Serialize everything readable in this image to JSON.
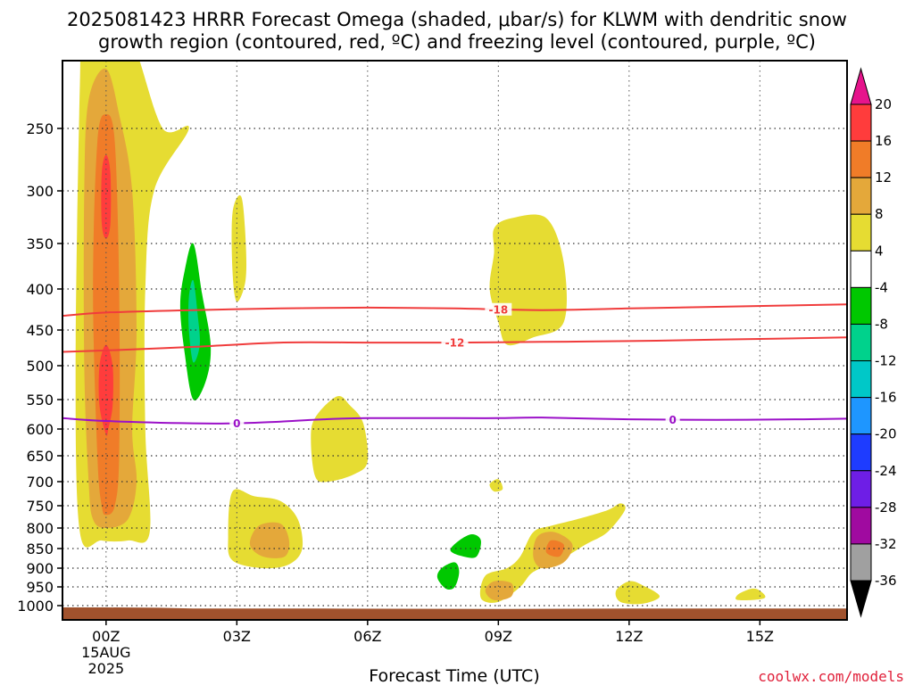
{
  "title": {
    "line1": "2025081423 HRRR Forecast Omega (shaded, μbar/s) for KLWM with dendritic snow",
    "line2": "growth region (contoured, red, ºC) and freezing level (contoured, purple, ºC)"
  },
  "credit": "coolwx.com/models",
  "chart_data": {
    "type": "time-height cross section",
    "xlabel": "Forecast Time (UTC)",
    "ylabel": "",
    "x_unit": "hours after 2025-08-15 00Z",
    "xlim": [
      -1.0,
      17.0
    ],
    "y_unit": "hPa",
    "ylim": [
      1020,
      200
    ],
    "x_ticks": [
      {
        "hour": 0,
        "label": "00Z",
        "sub1": "15AUG",
        "sub2": "2025"
      },
      {
        "hour": 3,
        "label": "03Z",
        "sub1": "",
        "sub2": ""
      },
      {
        "hour": 6,
        "label": "06Z",
        "sub1": "",
        "sub2": ""
      },
      {
        "hour": 9,
        "label": "09Z",
        "sub1": "",
        "sub2": ""
      },
      {
        "hour": 12,
        "label": "12Z",
        "sub1": "",
        "sub2": ""
      },
      {
        "hour": 15,
        "label": "15Z",
        "sub1": "",
        "sub2": ""
      }
    ],
    "y_ticks": [
      "250",
      "300",
      "350",
      "400",
      "450",
      "500",
      "550",
      "600",
      "650",
      "700",
      "750",
      "800",
      "850",
      "900",
      "950",
      "1000"
    ],
    "dotted_levels": [
      250,
      300,
      350,
      400,
      450,
      500,
      550,
      600,
      650,
      700,
      750,
      800,
      850,
      900,
      950,
      1000
    ],
    "grid": true,
    "colorbar": {
      "labels": [
        "20",
        "16",
        "12",
        "8",
        "4",
        "-4",
        "-8",
        "-12",
        "-16",
        "-20",
        "-24",
        "-28",
        "-32",
        "-36"
      ],
      "colors": [
        "#ff3c3c",
        "#f07c28",
        "#e4a83a",
        "#e6dc32",
        "#ffffff",
        "#00c800",
        "#00d28c",
        "#00c8c8",
        "#1e96ff",
        "#1e3cff",
        "#6e1ee6",
        "#a00aa0",
        "#a0a0a0"
      ],
      "top_arrow_color": "#e6148c",
      "bottom_arrow_color": "#000000"
    },
    "omega_regions": [
      {
        "level": 4,
        "color": "#e6dc32",
        "points": [
          [
            -0.6,
            810
          ],
          [
            -0.7,
            500
          ],
          [
            -0.6,
            220
          ],
          [
            -0.5,
            180
          ],
          [
            0.3,
            180
          ],
          [
            0.7,
            200
          ],
          [
            1.3,
            250
          ],
          [
            1.9,
            250
          ],
          [
            1.1,
            300
          ],
          [
            0.9,
            400
          ],
          [
            0.9,
            600
          ],
          [
            1.0,
            810
          ],
          [
            0.5,
            830
          ],
          [
            -0.1,
            830
          ]
        ]
      },
      {
        "level": 8,
        "color": "#e4a83a",
        "points": [
          [
            -0.4,
            700
          ],
          [
            -0.5,
            500
          ],
          [
            -0.5,
            300
          ],
          [
            -0.4,
            230
          ],
          [
            0.0,
            210
          ],
          [
            0.3,
            240
          ],
          [
            0.6,
            300
          ],
          [
            0.7,
            450
          ],
          [
            0.6,
            600
          ],
          [
            0.7,
            700
          ],
          [
            0.5,
            780
          ],
          [
            0.0,
            800
          ],
          [
            -0.3,
            780
          ]
        ]
      },
      {
        "level": 12,
        "color": "#f07c28",
        "points": [
          [
            -0.2,
            650
          ],
          [
            -0.3,
            400
          ],
          [
            -0.2,
            260
          ],
          [
            0.0,
            240
          ],
          [
            0.2,
            260
          ],
          [
            0.3,
            400
          ],
          [
            0.3,
            650
          ],
          [
            0.2,
            750
          ],
          [
            0.0,
            770
          ],
          [
            -0.1,
            750
          ]
        ]
      },
      {
        "level": 16,
        "color": "#ff3c3c",
        "points": [
          [
            -0.1,
            330
          ],
          [
            -0.1,
            285
          ],
          [
            0.0,
            270
          ],
          [
            0.1,
            285
          ],
          [
            0.1,
            330
          ],
          [
            0.0,
            345
          ]
        ]
      },
      {
        "level": 16,
        "color": "#ff3c3c",
        "points": [
          [
            -0.15,
            560
          ],
          [
            -0.15,
            500
          ],
          [
            0.0,
            470
          ],
          [
            0.15,
            500
          ],
          [
            0.15,
            560
          ],
          [
            0.05,
            600
          ],
          [
            0.0,
            610
          ]
        ]
      },
      {
        "level": 4,
        "color": "#e6dc32",
        "points": [
          [
            2.9,
            320
          ],
          [
            3.1,
            305
          ],
          [
            3.2,
            345
          ],
          [
            3.2,
            390
          ],
          [
            3.0,
            415
          ],
          [
            2.9,
            380
          ]
        ]
      },
      {
        "level": 4,
        "color": "#e6dc32",
        "points": [
          [
            5.3,
            545
          ],
          [
            5.6,
            560
          ],
          [
            5.9,
            590
          ],
          [
            6.0,
            660
          ],
          [
            5.7,
            685
          ],
          [
            5.1,
            700
          ],
          [
            4.8,
            690
          ],
          [
            4.7,
            620
          ],
          [
            4.8,
            580
          ]
        ]
      },
      {
        "level": 4,
        "color": "#e6dc32",
        "points": [
          [
            2.9,
            720
          ],
          [
            3.4,
            730
          ],
          [
            4.0,
            740
          ],
          [
            4.4,
            780
          ],
          [
            4.5,
            850
          ],
          [
            4.2,
            890
          ],
          [
            3.6,
            900
          ],
          [
            2.9,
            880
          ],
          [
            2.8,
            820
          ]
        ]
      },
      {
        "level": 8,
        "color": "#e4a83a",
        "points": [
          [
            3.5,
            795
          ],
          [
            4.0,
            790
          ],
          [
            4.2,
            830
          ],
          [
            4.1,
            870
          ],
          [
            3.6,
            870
          ],
          [
            3.3,
            840
          ]
        ]
      },
      {
        "level": 4,
        "color": "#e6dc32",
        "points": [
          [
            8.9,
            335
          ],
          [
            9.3,
            325
          ],
          [
            10.1,
            325
          ],
          [
            10.5,
            370
          ],
          [
            10.5,
            440
          ],
          [
            9.8,
            460
          ],
          [
            9.2,
            470
          ],
          [
            9.0,
            440
          ],
          [
            8.8,
            400
          ],
          [
            8.9,
            360
          ]
        ]
      },
      {
        "level": 4,
        "color": "#e6dc32",
        "points": [
          [
            8.8,
            705
          ],
          [
            9.0,
            695
          ],
          [
            9.1,
            715
          ],
          [
            8.9,
            720
          ]
        ]
      },
      {
        "level": 4,
        "color": "#e6dc32",
        "points": [
          [
            8.6,
            980
          ],
          [
            8.7,
            920
          ],
          [
            9.2,
            900
          ],
          [
            9.5,
            870
          ],
          [
            9.8,
            810
          ],
          [
            10.2,
            795
          ],
          [
            10.8,
            780
          ],
          [
            11.5,
            760
          ],
          [
            11.8,
            745
          ],
          [
            11.9,
            760
          ],
          [
            11.5,
            810
          ],
          [
            11.0,
            840
          ],
          [
            10.4,
            880
          ],
          [
            9.8,
            910
          ],
          [
            9.5,
            950
          ],
          [
            9.0,
            990
          ]
        ]
      },
      {
        "level": 8,
        "color": "#e4a83a",
        "points": [
          [
            9.8,
            870
          ],
          [
            9.9,
            820
          ],
          [
            10.3,
            810
          ],
          [
            10.7,
            840
          ],
          [
            10.5,
            885
          ],
          [
            10.0,
            900
          ]
        ]
      },
      {
        "level": 12,
        "color": "#f07c28",
        "points": [
          [
            10.1,
            860
          ],
          [
            10.2,
            830
          ],
          [
            10.5,
            840
          ],
          [
            10.4,
            870
          ]
        ]
      },
      {
        "level": 8,
        "color": "#e4a83a",
        "points": [
          [
            8.7,
            960
          ],
          [
            8.9,
            935
          ],
          [
            9.3,
            940
          ],
          [
            9.3,
            975
          ],
          [
            8.9,
            985
          ]
        ]
      },
      {
        "level": 4,
        "color": "#e6dc32",
        "points": [
          [
            11.7,
            960
          ],
          [
            12.0,
            935
          ],
          [
            12.3,
            945
          ],
          [
            12.7,
            975
          ],
          [
            12.3,
            995
          ],
          [
            11.8,
            990
          ]
        ]
      },
      {
        "level": 4,
        "color": "#e6dc32",
        "points": [
          [
            14.5,
            970
          ],
          [
            14.8,
            955
          ],
          [
            15.0,
            960
          ],
          [
            15.1,
            980
          ],
          [
            14.5,
            985
          ]
        ]
      },
      {
        "level": -4,
        "color": "#00c800",
        "points": [
          [
            2.0,
            350
          ],
          [
            2.2,
            405
          ],
          [
            2.4,
            470
          ],
          [
            2.3,
            520
          ],
          [
            2.0,
            550
          ],
          [
            1.8,
            480
          ],
          [
            1.7,
            420
          ],
          [
            1.8,
            380
          ]
        ]
      },
      {
        "level": -8,
        "color": "#00d28c",
        "points": [
          [
            2.0,
            390
          ],
          [
            2.1,
            430
          ],
          [
            2.15,
            470
          ],
          [
            2.0,
            495
          ],
          [
            1.9,
            450
          ],
          [
            1.9,
            410
          ]
        ]
      },
      {
        "level": -4,
        "color": "#00c800",
        "points": [
          [
            8.1,
            830
          ],
          [
            8.4,
            815
          ],
          [
            8.6,
            830
          ],
          [
            8.5,
            870
          ],
          [
            8.2,
            870
          ],
          [
            7.9,
            855
          ]
        ]
      },
      {
        "level": -4,
        "color": "#00c800",
        "points": [
          [
            7.7,
            900
          ],
          [
            8.0,
            885
          ],
          [
            8.1,
            910
          ],
          [
            8.0,
            950
          ],
          [
            7.8,
            955
          ],
          [
            7.6,
            925
          ]
        ]
      }
    ],
    "contours": [
      {
        "name": "-18",
        "color": "#f03c3c",
        "label_at": 9.0,
        "points": [
          [
            -1.0,
            432
          ],
          [
            0,
            428
          ],
          [
            2,
            425
          ],
          [
            4,
            423
          ],
          [
            6,
            422
          ],
          [
            8,
            423
          ],
          [
            10,
            425
          ],
          [
            12,
            423
          ],
          [
            14,
            421
          ],
          [
            17,
            418
          ]
        ]
      },
      {
        "name": "-12",
        "color": "#f03c3c",
        "label_at": 8.0,
        "points": [
          [
            -1.0,
            480
          ],
          [
            0,
            478
          ],
          [
            2,
            473
          ],
          [
            4,
            467
          ],
          [
            6,
            467
          ],
          [
            8,
            467
          ],
          [
            10,
            466
          ],
          [
            12,
            465
          ],
          [
            14,
            463
          ],
          [
            17,
            460
          ]
        ]
      },
      {
        "name": "0",
        "color": "#9b10c8",
        "label_at": 3.0,
        "points": [
          [
            -1.0,
            581
          ],
          [
            0,
            586
          ],
          [
            2,
            590
          ],
          [
            3,
            590
          ],
          [
            4,
            587
          ],
          [
            5,
            583
          ],
          [
            6,
            581
          ],
          [
            8,
            581
          ],
          [
            9,
            581
          ],
          [
            10,
            580
          ],
          [
            12,
            583
          ],
          [
            14,
            584
          ],
          [
            16,
            583
          ],
          [
            17,
            582
          ]
        ]
      },
      {
        "name": "0",
        "color": "#9b10c8",
        "label_at": 13.0,
        "points": []
      }
    ],
    "surface": {
      "color": "#a0522d",
      "points": [
        [
          -1.0,
          1005
        ],
        [
          0,
          1005
        ],
        [
          1.2,
          1006
        ],
        [
          2.0,
          1008
        ],
        [
          5,
          1008
        ],
        [
          9,
          1009
        ],
        [
          12,
          1008
        ],
        [
          15,
          1008
        ],
        [
          17,
          1008
        ]
      ]
    }
  }
}
